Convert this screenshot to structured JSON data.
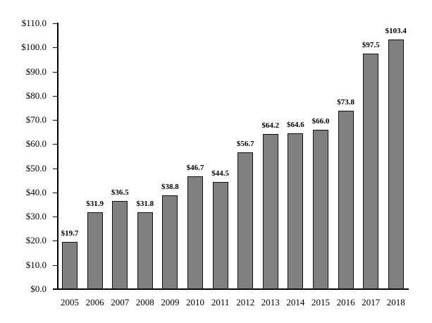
{
  "chart_data": {
    "type": "bar",
    "title": "",
    "xlabel": "",
    "ylabel": "",
    "categories": [
      "2005",
      "2006",
      "2007",
      "2008",
      "2009",
      "2010",
      "2011",
      "2012",
      "2013",
      "2014",
      "2015",
      "2016",
      "2017",
      "2018"
    ],
    "values": [
      19.7,
      31.9,
      36.5,
      31.8,
      38.8,
      46.7,
      44.5,
      56.7,
      64.2,
      64.6,
      66.0,
      73.8,
      97.5,
      103.4
    ],
    "value_labels": [
      "$19.7",
      "$31.9",
      "$36.5",
      "$31.8",
      "$38.8",
      "$46.7",
      "$44.5",
      "$56.7",
      "$64.2",
      "$64.6",
      "$66.0",
      "$73.8",
      "$97.5",
      "$103.4"
    ],
    "ylim": [
      0,
      110
    ],
    "yticks": [
      0,
      10,
      20,
      30,
      40,
      50,
      60,
      70,
      80,
      90,
      100,
      110
    ],
    "ytick_labels": [
      "$0.0",
      "$10.0",
      "$20.0",
      "$30.0",
      "$40.0",
      "$50.0",
      "$60.0",
      "$70.0",
      "$80.0",
      "$90.0",
      "$100.0",
      "$110.0"
    ],
    "grid": false,
    "legend": null,
    "bar_color": "#808080",
    "bar_edge_color": "#111111"
  }
}
